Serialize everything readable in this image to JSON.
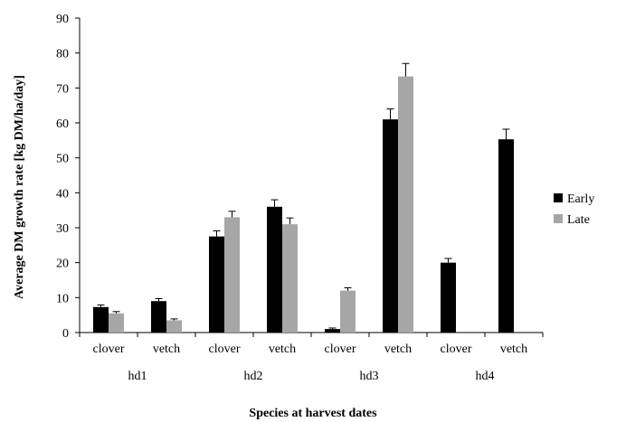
{
  "chart_data": {
    "type": "bar",
    "title": "",
    "xlabel": "Species at harvest dates",
    "ylabel": "Average DM growth rate [kg DM/ha/day]",
    "ylim": [
      0,
      90
    ],
    "yticks": [
      0,
      10,
      20,
      30,
      40,
      50,
      60,
      70,
      80,
      90
    ],
    "grid": false,
    "legend_position": "right",
    "groups": [
      {
        "label": "hd1",
        "categories": [
          "clover",
          "vetch"
        ]
      },
      {
        "label": "hd2",
        "categories": [
          "clover",
          "vetch"
        ]
      },
      {
        "label": "hd3",
        "categories": [
          "clover",
          "vetch"
        ]
      },
      {
        "label": "hd4",
        "categories": [
          "clover",
          "vetch"
        ]
      }
    ],
    "series": [
      {
        "name": "Early",
        "color": "#000000",
        "values": [
          7.3,
          9.0,
          27.5,
          36.0,
          1.0,
          61.0,
          20.0,
          55.3
        ],
        "errors": [
          0.6,
          0.7,
          1.6,
          2.0,
          0.3,
          3.0,
          1.2,
          2.9
        ]
      },
      {
        "name": "Late",
        "color": "#a6a6a6",
        "values": [
          5.5,
          3.5,
          33.0,
          31.0,
          12.0,
          73.3,
          null,
          null
        ],
        "errors": [
          0.5,
          0.4,
          1.7,
          1.8,
          0.8,
          3.7,
          null,
          null
        ]
      }
    ]
  }
}
